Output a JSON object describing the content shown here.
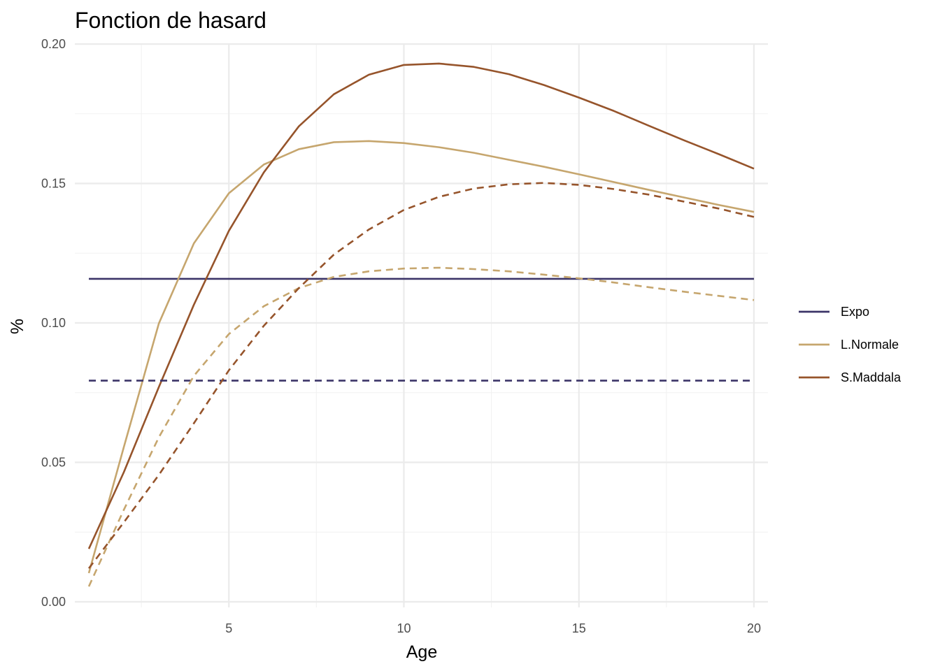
{
  "chart_data": {
    "type": "line",
    "title": "Fonction de hasard",
    "xlabel": "Age",
    "ylabel": "%",
    "xlim": [
      0.6,
      20.4
    ],
    "ylim": [
      -0.002,
      0.2
    ],
    "x_ticks": [
      5,
      10,
      15,
      20
    ],
    "x_minor_ticks": [
      2.5,
      7.5,
      12.5,
      17.5
    ],
    "y_ticks": [
      0.0,
      0.05,
      0.1,
      0.15,
      0.2
    ],
    "y_tick_labels": [
      "0.00",
      "0.05",
      "0.10",
      "0.15",
      "0.20"
    ],
    "y_minor_ticks": [
      0.025,
      0.075,
      0.125,
      0.175
    ],
    "grid": true,
    "legend": {
      "position": "right",
      "entries": [
        {
          "label": "Expo",
          "color": "#3b3468"
        },
        {
          "label": "L.Normale",
          "color": "#c6a66e"
        },
        {
          "label": "S.Maddala",
          "color": "#96542b"
        }
      ]
    },
    "x": [
      1,
      2,
      3,
      4,
      5,
      6,
      7,
      8,
      9,
      10,
      11,
      12,
      13,
      14,
      15,
      16,
      17,
      18,
      19,
      20
    ],
    "series": [
      {
        "name": "Expo",
        "linetype": "solid",
        "color": "#3b3468",
        "values": [
          0.1158,
          0.1158,
          0.1158,
          0.1158,
          0.1158,
          0.1158,
          0.1158,
          0.1158,
          0.1158,
          0.1158,
          0.1158,
          0.1158,
          0.1158,
          0.1158,
          0.1158,
          0.1158,
          0.1158,
          0.1158,
          0.1158,
          0.1158
        ]
      },
      {
        "name": "L.Normale",
        "linetype": "solid",
        "color": "#c6a66e",
        "values": [
          0.0103,
          0.0555,
          0.0998,
          0.1285,
          0.1465,
          0.1568,
          0.1623,
          0.1648,
          0.1652,
          0.1645,
          0.163,
          0.161,
          0.1585,
          0.156,
          0.1533,
          0.1505,
          0.1477,
          0.145,
          0.1423,
          0.1398
        ]
      },
      {
        "name": "S.Maddala",
        "linetype": "solid",
        "color": "#96542b",
        "values": [
          0.019,
          0.0465,
          0.077,
          0.1065,
          0.133,
          0.154,
          0.1705,
          0.182,
          0.189,
          0.1925,
          0.193,
          0.1918,
          0.1892,
          0.1853,
          0.1808,
          0.176,
          0.1707,
          0.1655,
          0.1605,
          0.1553
        ]
      },
      {
        "name": "Expo",
        "linetype": "dashed",
        "color": "#3b3468",
        "values": [
          0.0793,
          0.0793,
          0.0793,
          0.0793,
          0.0793,
          0.0793,
          0.0793,
          0.0793,
          0.0793,
          0.0793,
          0.0793,
          0.0793,
          0.0793,
          0.0793,
          0.0793,
          0.0793,
          0.0793,
          0.0793,
          0.0793,
          0.0793
        ]
      },
      {
        "name": "L.Normale",
        "linetype": "dashed",
        "color": "#c6a66e",
        "values": [
          0.0055,
          0.033,
          0.059,
          0.081,
          0.096,
          0.106,
          0.1125,
          0.1165,
          0.1185,
          0.1195,
          0.1198,
          0.1193,
          0.1185,
          0.1173,
          0.116,
          0.1145,
          0.1128,
          0.1112,
          0.1097,
          0.1082
        ]
      },
      {
        "name": "S.Maddala",
        "linetype": "dashed",
        "color": "#96542b",
        "values": [
          0.012,
          0.0285,
          0.0455,
          0.064,
          0.083,
          0.099,
          0.1125,
          0.1245,
          0.1335,
          0.1405,
          0.1452,
          0.1482,
          0.1497,
          0.1502,
          0.1495,
          0.148,
          0.146,
          0.1435,
          0.141,
          0.138
        ]
      }
    ]
  }
}
